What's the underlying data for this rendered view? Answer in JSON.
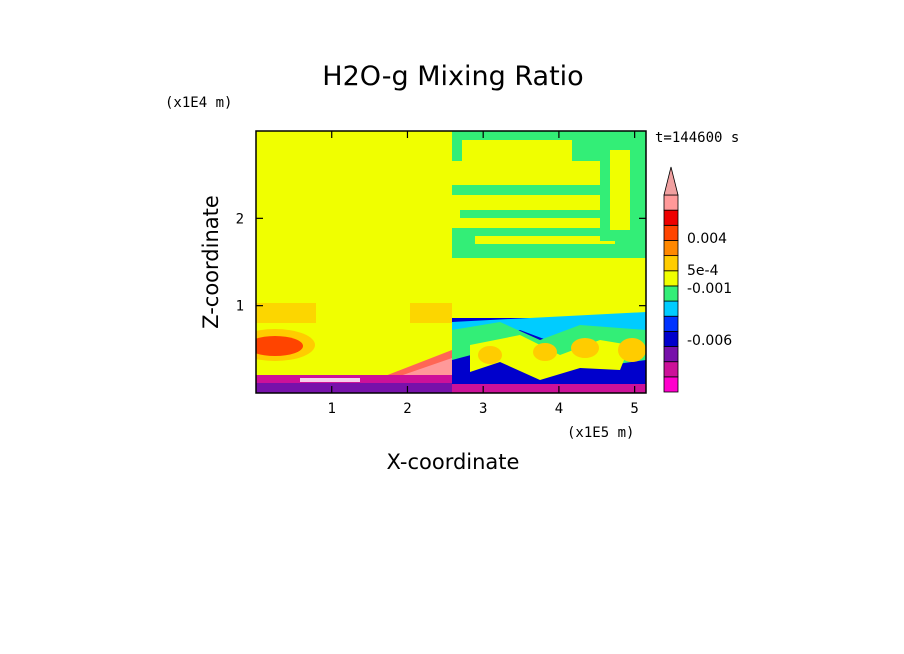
{
  "chart_data": {
    "type": "heatmap",
    "title": "H2O-g Mixing Ratio",
    "xlabel": "X-coordinate",
    "ylabel": "Z-coordinate",
    "x_unit": "(x1E5 m)",
    "y_unit": "(x1E4 m)",
    "time_label": "t=144600 s",
    "xlim": [
      0,
      5.15
    ],
    "ylim": [
      0,
      3.0
    ],
    "x_ticks": [
      1,
      2,
      3,
      4,
      5
    ],
    "x_tick_labels": [
      "1",
      "2",
      "3",
      "4",
      "5"
    ],
    "y_ticks": [
      1,
      2
    ],
    "y_tick_labels": [
      "1",
      "2"
    ],
    "colorbar": {
      "labels": [
        {
          "value": 0.004,
          "text": "0.004"
        },
        {
          "value": 0.0005,
          "text": "5e-4"
        },
        {
          "value": -0.001,
          "text": "-0.001"
        },
        {
          "value": -0.006,
          "text": "-0.006"
        }
      ],
      "colors": [
        "#ff00cc",
        "#cc1199",
        "#7711aa",
        "#0000cc",
        "#0033ff",
        "#00ccff",
        "#33ee77",
        "#f0ff00",
        "#ffcc00",
        "#ff8800",
        "#ff4400",
        "#ee0000",
        "#ff9999"
      ],
      "extend_max_color": "#f0a0a0"
    },
    "background_color": "#f0ff00"
  }
}
